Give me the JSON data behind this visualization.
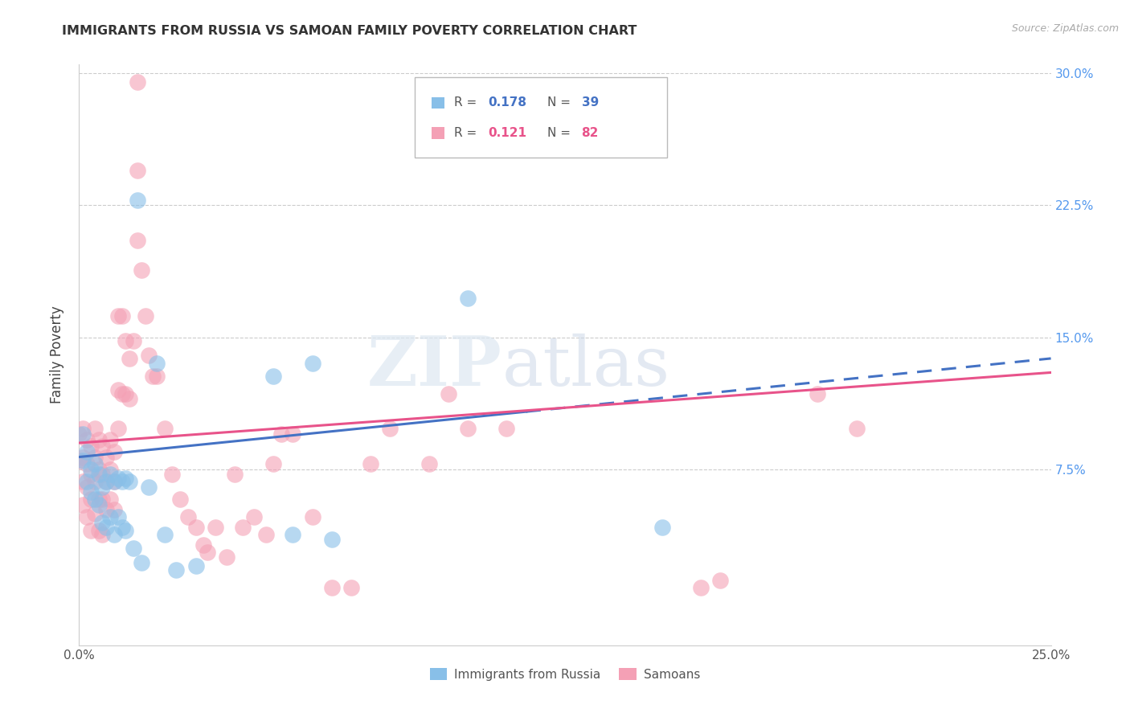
{
  "title": "IMMIGRANTS FROM RUSSIA VS SAMOAN FAMILY POVERTY CORRELATION CHART",
  "source": "Source: ZipAtlas.com",
  "ylabel": "Family Poverty",
  "xmin": 0.0,
  "xmax": 0.25,
  "ymin": -0.025,
  "ymax": 0.305,
  "ytick_vals": [
    0.075,
    0.15,
    0.225,
    0.3
  ],
  "ytick_labels": [
    "7.5%",
    "15.0%",
    "22.5%",
    "30.0%"
  ],
  "xtick_vals": [
    0.0,
    0.25
  ],
  "xtick_labels": [
    "0.0%",
    "25.0%"
  ],
  "color_blue": "#88bfe8",
  "color_pink": "#f4a0b5",
  "color_blue_line": "#4472c4",
  "color_pink_line": "#e8538a",
  "blue_scatter_x": [
    0.001,
    0.001,
    0.002,
    0.002,
    0.003,
    0.003,
    0.004,
    0.004,
    0.005,
    0.005,
    0.006,
    0.006,
    0.007,
    0.007,
    0.008,
    0.008,
    0.009,
    0.009,
    0.01,
    0.01,
    0.011,
    0.011,
    0.012,
    0.012,
    0.013,
    0.014,
    0.015,
    0.016,
    0.018,
    0.02,
    0.022,
    0.025,
    0.03,
    0.05,
    0.055,
    0.06,
    0.065,
    0.1,
    0.15
  ],
  "blue_scatter_y": [
    0.095,
    0.08,
    0.085,
    0.068,
    0.075,
    0.062,
    0.078,
    0.058,
    0.072,
    0.055,
    0.065,
    0.045,
    0.068,
    0.042,
    0.072,
    0.048,
    0.068,
    0.038,
    0.07,
    0.048,
    0.068,
    0.042,
    0.07,
    0.04,
    0.068,
    0.03,
    0.228,
    0.022,
    0.065,
    0.135,
    0.038,
    0.018,
    0.02,
    0.128,
    0.038,
    0.135,
    0.035,
    0.172,
    0.042
  ],
  "pink_scatter_x": [
    0.0,
    0.0,
    0.001,
    0.001,
    0.001,
    0.001,
    0.002,
    0.002,
    0.002,
    0.002,
    0.003,
    0.003,
    0.003,
    0.003,
    0.004,
    0.004,
    0.004,
    0.004,
    0.005,
    0.005,
    0.005,
    0.005,
    0.006,
    0.006,
    0.006,
    0.006,
    0.007,
    0.007,
    0.007,
    0.008,
    0.008,
    0.008,
    0.009,
    0.009,
    0.009,
    0.01,
    0.01,
    0.01,
    0.011,
    0.011,
    0.012,
    0.012,
    0.013,
    0.013,
    0.014,
    0.015,
    0.015,
    0.015,
    0.016,
    0.017,
    0.018,
    0.019,
    0.02,
    0.022,
    0.024,
    0.026,
    0.028,
    0.03,
    0.032,
    0.033,
    0.035,
    0.038,
    0.04,
    0.042,
    0.045,
    0.048,
    0.05,
    0.052,
    0.055,
    0.06,
    0.065,
    0.07,
    0.075,
    0.08,
    0.09,
    0.095,
    0.1,
    0.11,
    0.16,
    0.165,
    0.19,
    0.2
  ],
  "pink_scatter_y": [
    0.095,
    0.08,
    0.098,
    0.082,
    0.068,
    0.055,
    0.092,
    0.078,
    0.065,
    0.048,
    0.088,
    0.072,
    0.058,
    0.04,
    0.098,
    0.082,
    0.068,
    0.05,
    0.092,
    0.075,
    0.058,
    0.04,
    0.088,
    0.072,
    0.058,
    0.038,
    0.082,
    0.068,
    0.052,
    0.092,
    0.075,
    0.058,
    0.085,
    0.068,
    0.052,
    0.162,
    0.12,
    0.098,
    0.162,
    0.118,
    0.148,
    0.118,
    0.138,
    0.115,
    0.148,
    0.295,
    0.245,
    0.205,
    0.188,
    0.162,
    0.14,
    0.128,
    0.128,
    0.098,
    0.072,
    0.058,
    0.048,
    0.042,
    0.032,
    0.028,
    0.042,
    0.025,
    0.072,
    0.042,
    0.048,
    0.038,
    0.078,
    0.095,
    0.095,
    0.048,
    0.008,
    0.008,
    0.078,
    0.098,
    0.078,
    0.118,
    0.098,
    0.098,
    0.008,
    0.012,
    0.118,
    0.098
  ]
}
